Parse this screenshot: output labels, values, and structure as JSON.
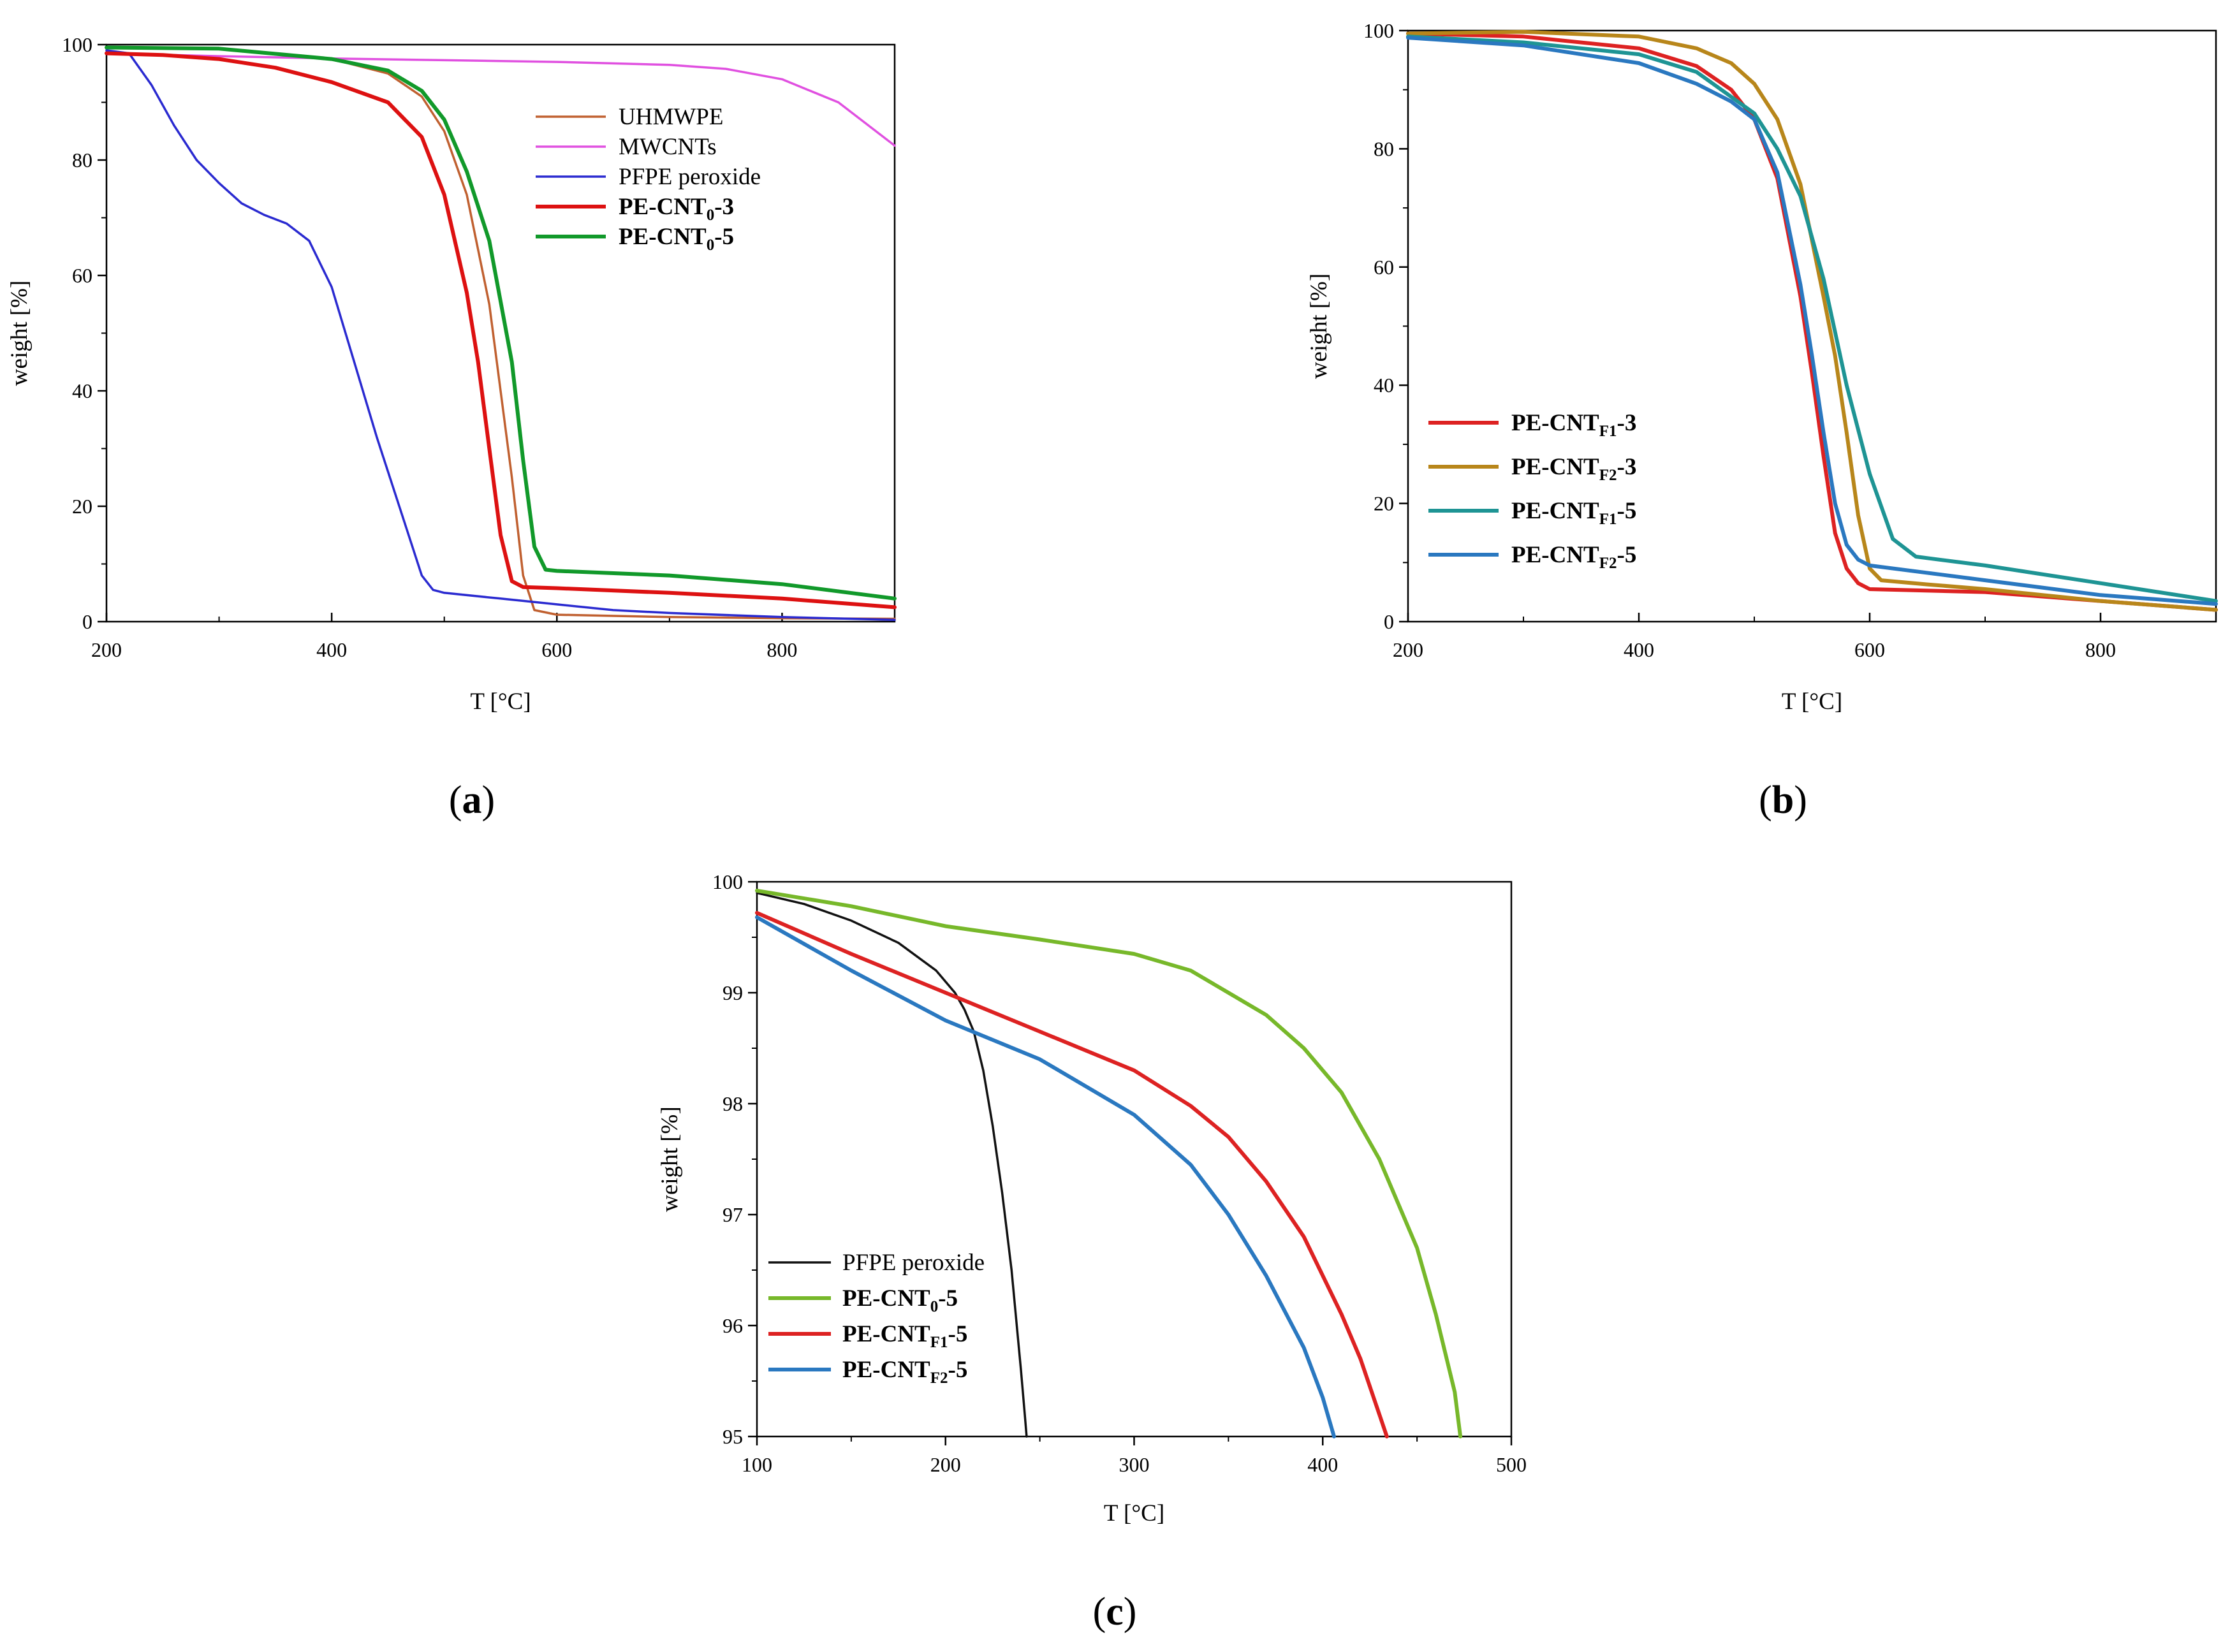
{
  "panels": [
    {
      "label_open": "(",
      "label_letter": "a",
      "label_close": ")"
    },
    {
      "label_open": "(",
      "label_letter": "b",
      "label_close": ")"
    },
    {
      "label_open": "(",
      "label_letter": "c",
      "label_close": ")"
    }
  ],
  "chart_data": [
    {
      "type": "line",
      "panel": "a",
      "title": "",
      "xlabel": "T [°C]",
      "ylabel": "weight [%]",
      "xlim": [
        200,
        900
      ],
      "ylim": [
        0,
        100
      ],
      "xticks": [
        200,
        400,
        600,
        800
      ],
      "yticks": [
        0,
        20,
        40,
        60,
        80,
        100
      ],
      "legend_position": "top-right",
      "series": [
        {
          "name": "UHMWPE",
          "subscript": "",
          "suffix": "",
          "bold": false,
          "color": "#c06030",
          "x": [
            200,
            300,
            400,
            450,
            480,
            500,
            520,
            540,
            560,
            570,
            580,
            600,
            700,
            800,
            900
          ],
          "y": [
            99.5,
            99.2,
            97.5,
            95,
            91,
            85,
            74,
            55,
            25,
            8,
            2,
            1.2,
            0.8,
            0.6,
            0.5
          ]
        },
        {
          "name": "MWCNTs",
          "subscript": "",
          "suffix": "",
          "bold": false,
          "color": "#e050e0",
          "x": [
            200,
            300,
            400,
            500,
            600,
            700,
            750,
            800,
            850,
            900
          ],
          "y": [
            98.5,
            98,
            97.6,
            97.3,
            97,
            96.5,
            95.8,
            94,
            90,
            82.5
          ]
        },
        {
          "name": "PFPE peroxide",
          "subscript": "",
          "suffix": "",
          "bold": false,
          "color": "#2a2ad0",
          "x": [
            200,
            220,
            240,
            260,
            280,
            300,
            320,
            340,
            360,
            380,
            400,
            420,
            440,
            460,
            480,
            490,
            500,
            550,
            600,
            650,
            700,
            800,
            900
          ],
          "y": [
            99,
            98.5,
            93,
            86,
            80,
            76,
            72.5,
            70.5,
            69,
            66,
            58,
            45,
            32,
            20,
            8,
            5.5,
            5,
            4,
            3,
            2,
            1.5,
            0.8,
            0.3
          ]
        },
        {
          "name": "PE-CNT",
          "subscript": "0",
          "suffix": "-3",
          "bold": true,
          "color": "#dd1111",
          "x": [
            200,
            250,
            300,
            350,
            400,
            450,
            480,
            500,
            520,
            530,
            540,
            550,
            560,
            570,
            600,
            700,
            800,
            900
          ],
          "y": [
            98.5,
            98.2,
            97.5,
            96,
            93.5,
            90,
            84,
            74,
            57,
            45,
            30,
            15,
            7,
            6,
            5.8,
            5,
            4,
            2.5
          ]
        },
        {
          "name": "PE-CNT",
          "subscript": "0",
          "suffix": "-5",
          "bold": true,
          "color": "#11992a",
          "x": [
            200,
            300,
            400,
            450,
            480,
            500,
            520,
            540,
            560,
            570,
            580,
            590,
            600,
            700,
            800,
            900
          ],
          "y": [
            99.5,
            99.3,
            97.5,
            95.5,
            92,
            87,
            78,
            66,
            45,
            28,
            13,
            9,
            8.8,
            8,
            6.5,
            4
          ]
        }
      ]
    },
    {
      "type": "line",
      "panel": "b",
      "title": "",
      "xlabel": "T [°C]",
      "ylabel": "weight [%]",
      "xlim": [
        200,
        900
      ],
      "ylim": [
        0,
        100
      ],
      "xticks": [
        200,
        400,
        600,
        800
      ],
      "yticks": [
        0,
        20,
        40,
        60,
        80,
        100
      ],
      "legend_position": "bottom-left",
      "series": [
        {
          "name": "PE-CNT",
          "subscript": "F1",
          "suffix": "-3",
          "bold": true,
          "color": "#dd2222",
          "x": [
            200,
            300,
            400,
            450,
            480,
            500,
            520,
            540,
            550,
            560,
            570,
            580,
            590,
            600,
            700,
            800,
            900
          ],
          "y": [
            99.5,
            99,
            97,
            94,
            90,
            85,
            75,
            55,
            42,
            28,
            15,
            9,
            6.5,
            5.5,
            5,
            3.5,
            2
          ]
        },
        {
          "name": "PE-CNT",
          "subscript": "F2",
          "suffix": "-3",
          "bold": true,
          "color": "#b8861a",
          "x": [
            200,
            300,
            400,
            450,
            480,
            500,
            520,
            540,
            560,
            570,
            580,
            590,
            600,
            610,
            650,
            700,
            800,
            900
          ],
          "y": [
            99.5,
            99.8,
            99,
            97,
            94.5,
            91,
            85,
            74,
            55,
            45,
            32,
            18,
            9,
            7,
            6.3,
            5.5,
            3.5,
            2
          ]
        },
        {
          "name": "PE-CNT",
          "subscript": "F1",
          "suffix": "-5",
          "bold": true,
          "color": "#1e9494",
          "x": [
            200,
            300,
            400,
            450,
            500,
            520,
            540,
            560,
            580,
            600,
            620,
            640,
            660,
            700,
            800,
            900
          ],
          "y": [
            99,
            98,
            96,
            93,
            86,
            80,
            72,
            58,
            40,
            25,
            14,
            11,
            10.5,
            9.5,
            6.5,
            3.5
          ]
        },
        {
          "name": "PE-CNT",
          "subscript": "F2",
          "suffix": "-5",
          "bold": true,
          "color": "#2a78c0",
          "x": [
            200,
            300,
            400,
            450,
            480,
            500,
            520,
            540,
            550,
            560,
            570,
            580,
            590,
            600,
            700,
            800,
            900
          ],
          "y": [
            98.8,
            97.5,
            94.5,
            91,
            88,
            85,
            76,
            57,
            45,
            32,
            20,
            13,
            10.5,
            9.5,
            7,
            4.5,
            3
          ]
        }
      ]
    },
    {
      "type": "line",
      "panel": "c",
      "title": "",
      "xlabel": "T [°C]",
      "ylabel": "weight [%]",
      "xlim": [
        100,
        500
      ],
      "ylim": [
        95,
        100
      ],
      "xticks": [
        100,
        200,
        300,
        400,
        500
      ],
      "yticks": [
        95,
        96,
        97,
        98,
        99,
        100
      ],
      "legend_position": "bottom-left",
      "series": [
        {
          "name": "PFPE peroxide",
          "subscript": "",
          "suffix": "",
          "bold": false,
          "color": "#111111",
          "x": [
            100,
            125,
            150,
            175,
            195,
            205,
            210,
            215,
            220,
            225,
            230,
            235,
            240,
            242,
            243
          ],
          "y": [
            99.9,
            99.8,
            99.65,
            99.45,
            99.2,
            99.0,
            98.85,
            98.65,
            98.3,
            97.8,
            97.2,
            96.5,
            95.6,
            95.2,
            95.0
          ]
        },
        {
          "name": "PE-CNT",
          "subscript": "0",
          "suffix": "-5",
          "bold": true,
          "color": "#77b82a",
          "x": [
            100,
            150,
            200,
            250,
            300,
            330,
            350,
            370,
            390,
            410,
            430,
            450,
            460,
            470,
            473
          ],
          "y": [
            99.92,
            99.78,
            99.6,
            99.48,
            99.35,
            99.2,
            99.0,
            98.8,
            98.5,
            98.1,
            97.5,
            96.7,
            96.1,
            95.4,
            95.0
          ]
        },
        {
          "name": "PE-CNT",
          "subscript": "F1",
          "suffix": "-5",
          "bold": true,
          "color": "#dd2222",
          "x": [
            100,
            150,
            200,
            250,
            300,
            330,
            350,
            370,
            390,
            410,
            420,
            430,
            434
          ],
          "y": [
            99.72,
            99.35,
            99.0,
            98.65,
            98.3,
            97.98,
            97.7,
            97.3,
            96.8,
            96.1,
            95.7,
            95.2,
            95.0
          ]
        },
        {
          "name": "PE-CNT",
          "subscript": "F2",
          "suffix": "-5",
          "bold": true,
          "color": "#2a78c0",
          "x": [
            100,
            150,
            200,
            250,
            300,
            330,
            350,
            370,
            390,
            400,
            406
          ],
          "y": [
            99.68,
            99.2,
            98.75,
            98.4,
            97.9,
            97.45,
            97.0,
            96.45,
            95.8,
            95.35,
            95.0
          ]
        }
      ]
    }
  ]
}
